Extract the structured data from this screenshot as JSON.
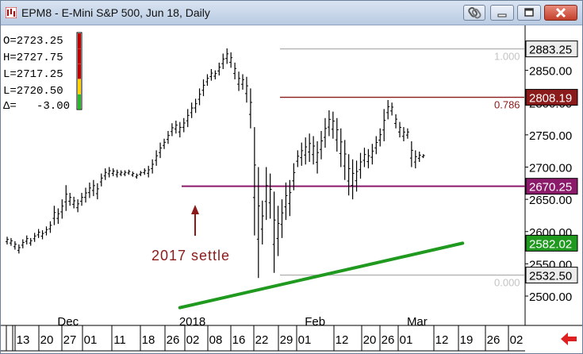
{
  "window": {
    "title": "EPM8 - E-Mini S&P 500, Jun 18, Daily",
    "icons": [
      "chart-app-icon",
      "link-icon",
      "minimize-icon",
      "maximize-icon",
      "close-icon",
      "scroll-left-arrow-icon"
    ]
  },
  "quote_box": {
    "lines": [
      "O=2723.25",
      "H=2727.75",
      "L=2717.25",
      "L=2720.50",
      "Δ=   -3.00"
    ],
    "indicator_colors": [
      "#c00000",
      "#c00000",
      "#c00000",
      "#ffd200",
      "#2db52d"
    ]
  },
  "colors": {
    "up_bar": "#000000",
    "price_tag_line": "#8b1a1a",
    "settle_line": "#8b1a6b",
    "trend_line": "#1f9a1f",
    "fib_line": "#b3b3b3",
    "annotation": "#8b1a1a"
  },
  "chart_data": {
    "type": "ohlc_daily",
    "title": "EPM8 - E-Mini S&P 500, Jun 18, Daily",
    "ylim": [
      2480,
      2895
    ],
    "y_ticks": [
      2500,
      2550,
      2600,
      2650,
      2700,
      2750,
      2800,
      2850
    ],
    "y_tick_labels": [
      "2500.00",
      "2550.00",
      "2600.00",
      "2650.00",
      "2700.00",
      "2750.00",
      "2800.00",
      "2850.00"
    ],
    "x_day_labels": [
      "13",
      "20",
      "27",
      "01",
      "11",
      "18",
      "26",
      "02",
      "08",
      "16",
      "22",
      "29",
      "01",
      "12",
      "20",
      "26",
      "01",
      "12",
      "19",
      "26",
      "02"
    ],
    "x_month_labels": [
      {
        "label": "Dec",
        "bar": 12
      },
      {
        "label": "2018",
        "bar": 43
      },
      {
        "label": "Feb",
        "bar": 75
      },
      {
        "label": "Mar",
        "bar": 101
      }
    ],
    "price_tags": [
      {
        "value": 2883.25,
        "label": "2883.25",
        "style": "plain"
      },
      {
        "value": 2808.19,
        "label": "2808.19",
        "style": "red"
      },
      {
        "value": 2670.25,
        "label": "2670.25",
        "style": "purple"
      },
      {
        "value": 2582.02,
        "label": "2582.02",
        "style": "green"
      },
      {
        "value": 2532.5,
        "label": "2532.50",
        "style": "plain"
      }
    ],
    "fibonacci": [
      {
        "level": "1.000",
        "price": 2883.25
      },
      {
        "level": "0.786",
        "price": 2808.19
      },
      {
        "level": "0.000",
        "price": 2532.5
      }
    ],
    "settle_line": {
      "price": 2670.25,
      "label": "2017 settle"
    },
    "trend_line": {
      "start": {
        "bar": 44,
        "price": 2482
      },
      "end": {
        "bar": 116,
        "price": 2582
      }
    },
    "bars": [
      [
        2592,
        2580
      ],
      [
        2590,
        2578
      ],
      [
        2585,
        2572
      ],
      [
        2580,
        2566
      ],
      [
        2588,
        2574
      ],
      [
        2594,
        2580
      ],
      [
        2590,
        2578
      ],
      [
        2598,
        2584
      ],
      [
        2604,
        2590
      ],
      [
        2602,
        2588
      ],
      [
        2608,
        2594
      ],
      [
        2616,
        2598
      ],
      [
        2640,
        2610
      ],
      [
        2636,
        2612
      ],
      [
        2650,
        2620
      ],
      [
        2672,
        2632
      ],
      [
        2660,
        2640
      ],
      [
        2654,
        2636
      ],
      [
        2650,
        2630
      ],
      [
        2660,
        2640
      ],
      [
        2668,
        2645
      ],
      [
        2676,
        2652
      ],
      [
        2680,
        2655
      ],
      [
        2675,
        2650
      ],
      [
        2690,
        2670
      ],
      [
        2698,
        2680
      ],
      [
        2700,
        2684
      ],
      [
        2698,
        2686
      ],
      [
        2696,
        2684
      ],
      [
        2695,
        2686
      ],
      [
        2695,
        2686
      ],
      [
        2696,
        2688
      ],
      [
        2693,
        2685
      ],
      [
        2690,
        2682
      ],
      [
        2694,
        2686
      ],
      [
        2698,
        2688
      ],
      [
        2702,
        2684
      ],
      [
        2712,
        2690
      ],
      [
        2726,
        2702
      ],
      [
        2738,
        2714
      ],
      [
        2744,
        2728
      ],
      [
        2756,
        2736
      ],
      [
        2768,
        2748
      ],
      [
        2772,
        2752
      ],
      [
        2770,
        2746
      ],
      [
        2776,
        2754
      ],
      [
        2790,
        2762
      ],
      [
        2800,
        2776
      ],
      [
        2806,
        2784
      ],
      [
        2822,
        2796
      ],
      [
        2836,
        2810
      ],
      [
        2844,
        2826
      ],
      [
        2852,
        2834
      ],
      [
        2850,
        2836
      ],
      [
        2862,
        2842
      ],
      [
        2876,
        2852
      ],
      [
        2884,
        2860
      ],
      [
        2878,
        2854
      ],
      [
        2862,
        2836
      ],
      [
        2848,
        2818
      ],
      [
        2844,
        2820
      ],
      [
        2840,
        2800
      ],
      [
        2822,
        2760
      ],
      [
        2762,
        2594
      ],
      [
        2700,
        2528
      ],
      [
        2648,
        2580
      ],
      [
        2700,
        2618
      ],
      [
        2690,
        2620
      ],
      [
        2662,
        2536
      ],
      [
        2640,
        2562
      ],
      [
        2650,
        2590
      ],
      [
        2676,
        2618
      ],
      [
        2680,
        2624
      ],
      [
        2706,
        2664
      ],
      [
        2726,
        2700
      ],
      [
        2738,
        2702
      ],
      [
        2746,
        2704
      ],
      [
        2752,
        2708
      ],
      [
        2748,
        2704
      ],
      [
        2740,
        2690
      ],
      [
        2756,
        2712
      ],
      [
        2776,
        2730
      ],
      [
        2788,
        2748
      ],
      [
        2786,
        2744
      ],
      [
        2776,
        2724
      ],
      [
        2760,
        2700
      ],
      [
        2742,
        2680
      ],
      [
        2720,
        2656
      ],
      [
        2712,
        2650
      ],
      [
        2710,
        2662
      ],
      [
        2722,
        2682
      ],
      [
        2730,
        2700
      ],
      [
        2728,
        2698
      ],
      [
        2736,
        2704
      ],
      [
        2748,
        2720
      ],
      [
        2760,
        2732
      ],
      [
        2790,
        2740
      ],
      [
        2804,
        2774
      ],
      [
        2800,
        2780
      ],
      [
        2782,
        2760
      ],
      [
        2770,
        2746
      ],
      [
        2762,
        2740
      ],
      [
        2760,
        2744
      ],
      [
        2740,
        2700
      ],
      [
        2726,
        2698
      ],
      [
        2724,
        2708
      ],
      [
        2720,
        2714
      ]
    ]
  }
}
